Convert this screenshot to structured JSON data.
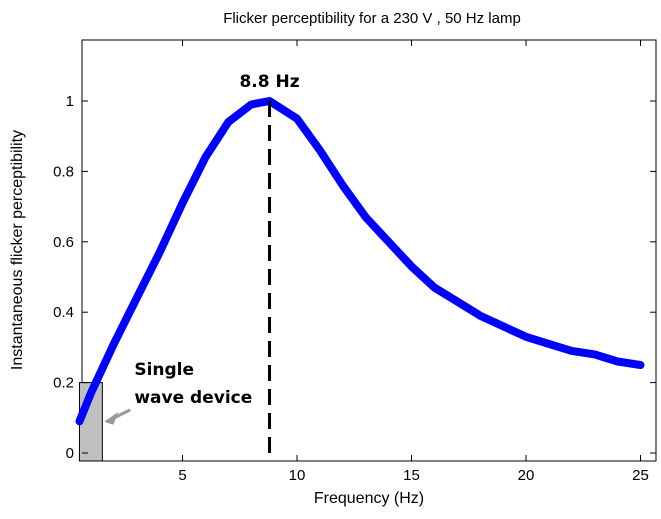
{
  "chart_data": {
    "type": "line",
    "title": "Flicker perceptibility for a 230 V , 50 Hz lamp",
    "xlabel": "Frequency (Hz)",
    "ylabel": "Instantaneous flicker perceptibility",
    "xlim": [
      0,
      25
    ],
    "ylim": [
      0,
      1.15
    ],
    "xticks": [
      5,
      10,
      15,
      20,
      25
    ],
    "xtick_labels": [
      "5",
      "10",
      "15",
      "20",
      "25"
    ],
    "yticks": [
      0,
      0.2,
      0.4,
      0.6,
      0.8,
      1
    ],
    "ytick_labels": [
      "0",
      "0.2",
      "0.4",
      "0.6",
      "0.8",
      "1"
    ],
    "grid": false,
    "series": [
      {
        "color": "#0000ff",
        "x": [
          0.5,
          1,
          2,
          3,
          4,
          5,
          6,
          7,
          8,
          8.8,
          10,
          11,
          12,
          13,
          14,
          15,
          16,
          17,
          18,
          19,
          20,
          21,
          22,
          23,
          24,
          25
        ],
        "y": [
          0.09,
          0.17,
          0.31,
          0.44,
          0.57,
          0.71,
          0.84,
          0.94,
          0.99,
          1.0,
          0.95,
          0.86,
          0.76,
          0.67,
          0.6,
          0.53,
          0.47,
          0.43,
          0.39,
          0.36,
          0.33,
          0.31,
          0.29,
          0.28,
          0.26,
          0.25
        ]
      }
    ],
    "peak_marker": {
      "x": 8.8,
      "label": "8.8 Hz",
      "style": "dashed",
      "color": "#000000"
    },
    "shaded_region": {
      "x": [
        0.5,
        1.5
      ],
      "y": [
        0,
        0.2
      ],
      "color": "#c0c0c0",
      "label": "Single wave device",
      "label_lines": [
        "Single",
        "wave device"
      ]
    }
  }
}
